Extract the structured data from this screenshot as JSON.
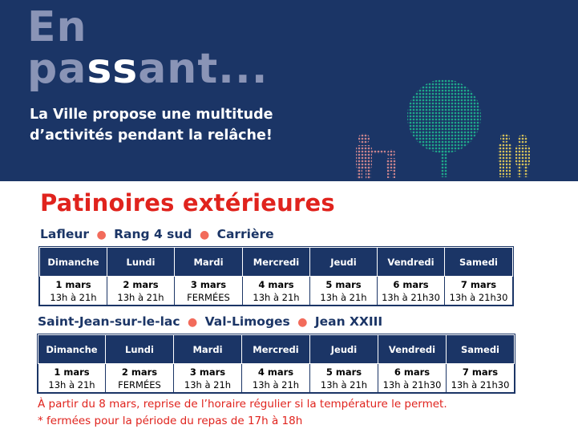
{
  "banner": {
    "logo_line1": "En",
    "logo_line2_pre": "pa",
    "logo_line2_ss": "ss",
    "logo_line2_post": "ant...",
    "tagline_line1": "La Ville propose une multitude",
    "tagline_line2": "d’activités pendant la relâche!",
    "colors": {
      "background": "#1b3566",
      "logo": "#8a94b6"
    }
  },
  "title": "Patinoires extérieures",
  "group1": {
    "rinks": [
      "Lafleur",
      "Rang 4 sud",
      "Carrière"
    ],
    "headers": [
      "Dimanche",
      "Lundi",
      "Mardi",
      "Mercredi",
      "Jeudi",
      "Vendredi",
      "Samedi"
    ],
    "cells": [
      {
        "date": "1 mars",
        "hours": "13h à 21h"
      },
      {
        "date": "2 mars",
        "hours": "13h à 21h"
      },
      {
        "date": "3 mars",
        "hours": "FERMÉES"
      },
      {
        "date": "4 mars",
        "hours": "13h à 21h"
      },
      {
        "date": "5 mars",
        "hours": "13h à 21h"
      },
      {
        "date": "6 mars",
        "hours": "13h à 21h30"
      },
      {
        "date": "7 mars",
        "hours": "13h à 21h30"
      }
    ]
  },
  "group2": {
    "rinks": [
      "Saint-Jean-sur-le-lac",
      "Val-Limoges",
      "Jean XXIII"
    ],
    "headers": [
      "Dimanche",
      "Lundi",
      "Mardi",
      "Mercredi",
      "Jeudi",
      "Vendredi",
      "Samedi"
    ],
    "cells": [
      {
        "date": "1 mars",
        "hours": "13h à 21h"
      },
      {
        "date": "2 mars",
        "hours": "FERMÉES"
      },
      {
        "date": "3 mars",
        "hours": "13h à 21h"
      },
      {
        "date": "4 mars",
        "hours": "13h à 21h"
      },
      {
        "date": "5 mars",
        "hours": "13h à 21h"
      },
      {
        "date": "6 mars",
        "hours": "13h à 21h30"
      },
      {
        "date": "7 mars",
        "hours": "13h à 21h30"
      }
    ]
  },
  "notes": [
    "À partir du 8 mars, reprise de l’horaire régulier si la température le permet.",
    "* fermées pour la période du repas de 17h à 18h"
  ],
  "colors": {
    "accent_red": "#e0231d",
    "dot": "#f26b5b",
    "navy": "#1b3566"
  },
  "icons": {
    "illustration": "family-walking-tree-illustration"
  }
}
